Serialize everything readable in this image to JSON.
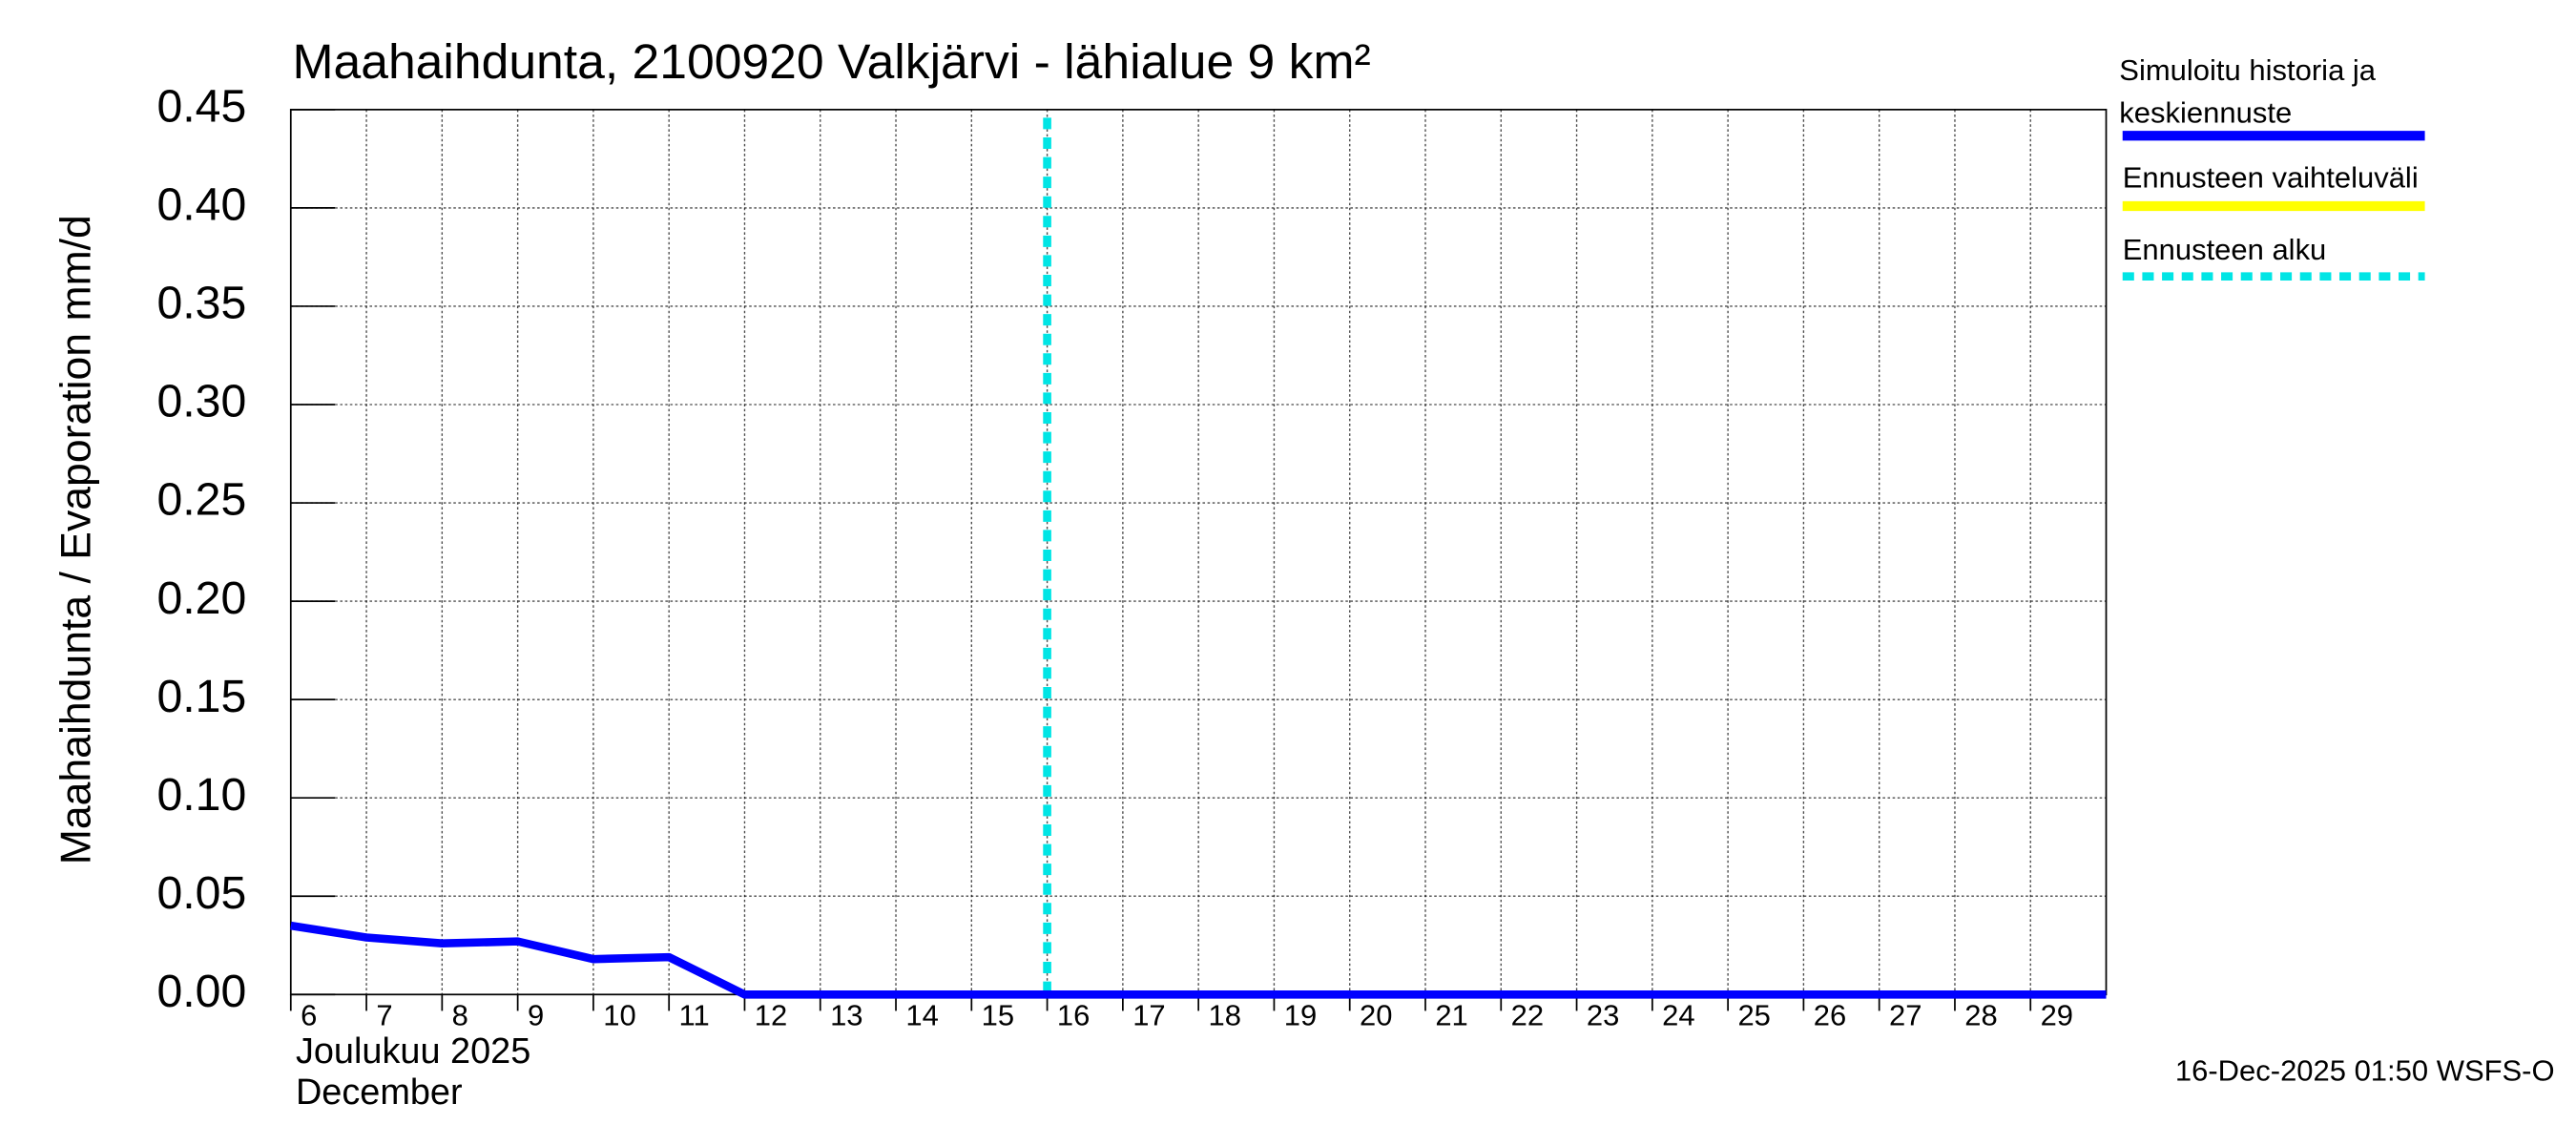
{
  "chart_data": {
    "type": "line",
    "title": "Maahaihdunta, 2100920 Valkjärvi - lähialue 9 km²",
    "y_label": "Maahaihdunta / Evaporation   mm/d",
    "x_label_fi": "Joulukuu  2025",
    "x_label_en": "December",
    "x": [
      6,
      7,
      8,
      9,
      10,
      11,
      12,
      13,
      14,
      15,
      16,
      17,
      18,
      19,
      20,
      21,
      22,
      23,
      24,
      25,
      26,
      27,
      28,
      29,
      30
    ],
    "series": [
      {
        "name": "Simuloitu historia ja keskiennuste",
        "color": "#0000ff",
        "values": [
          0.035,
          0.029,
          0.026,
          0.027,
          0.018,
          0.019,
          0.0,
          0.0,
          0.0,
          0.0,
          0.0,
          0.0,
          0.0,
          0.0,
          0.0,
          0.0,
          0.0,
          0.0,
          0.0,
          0.0,
          0.0,
          0.0,
          0.0,
          0.0,
          0.0
        ]
      }
    ],
    "range_legend": {
      "name": "Ennusteen vaihteluväli",
      "color": "#ffff00"
    },
    "forecast_start": {
      "name": "Ennusteen alku",
      "x": 16,
      "color": "#00e5e5"
    },
    "xlim": [
      6,
      30
    ],
    "xticks": [
      6,
      7,
      8,
      9,
      10,
      11,
      12,
      13,
      14,
      15,
      16,
      17,
      18,
      19,
      20,
      21,
      22,
      23,
      24,
      25,
      26,
      27,
      28,
      29
    ],
    "ylim": [
      0,
      0.45
    ],
    "yticks": [
      {
        "value": 0,
        "label": "0.00"
      },
      {
        "value": 0.05,
        "label": "0.05"
      },
      {
        "value": 0.1,
        "label": "0.10"
      },
      {
        "value": 0.15,
        "label": "0.15"
      },
      {
        "value": 0.2,
        "label": "0.20"
      },
      {
        "value": 0.25,
        "label": "0.25"
      },
      {
        "value": 0.3,
        "label": "0.30"
      },
      {
        "value": 0.35,
        "label": "0.35"
      },
      {
        "value": 0.4,
        "label": "0.40"
      },
      {
        "value": 0.45,
        "label": "0.45"
      }
    ],
    "grid": true,
    "footer": "16-Dec-2025 01:50 WSFS-O"
  }
}
